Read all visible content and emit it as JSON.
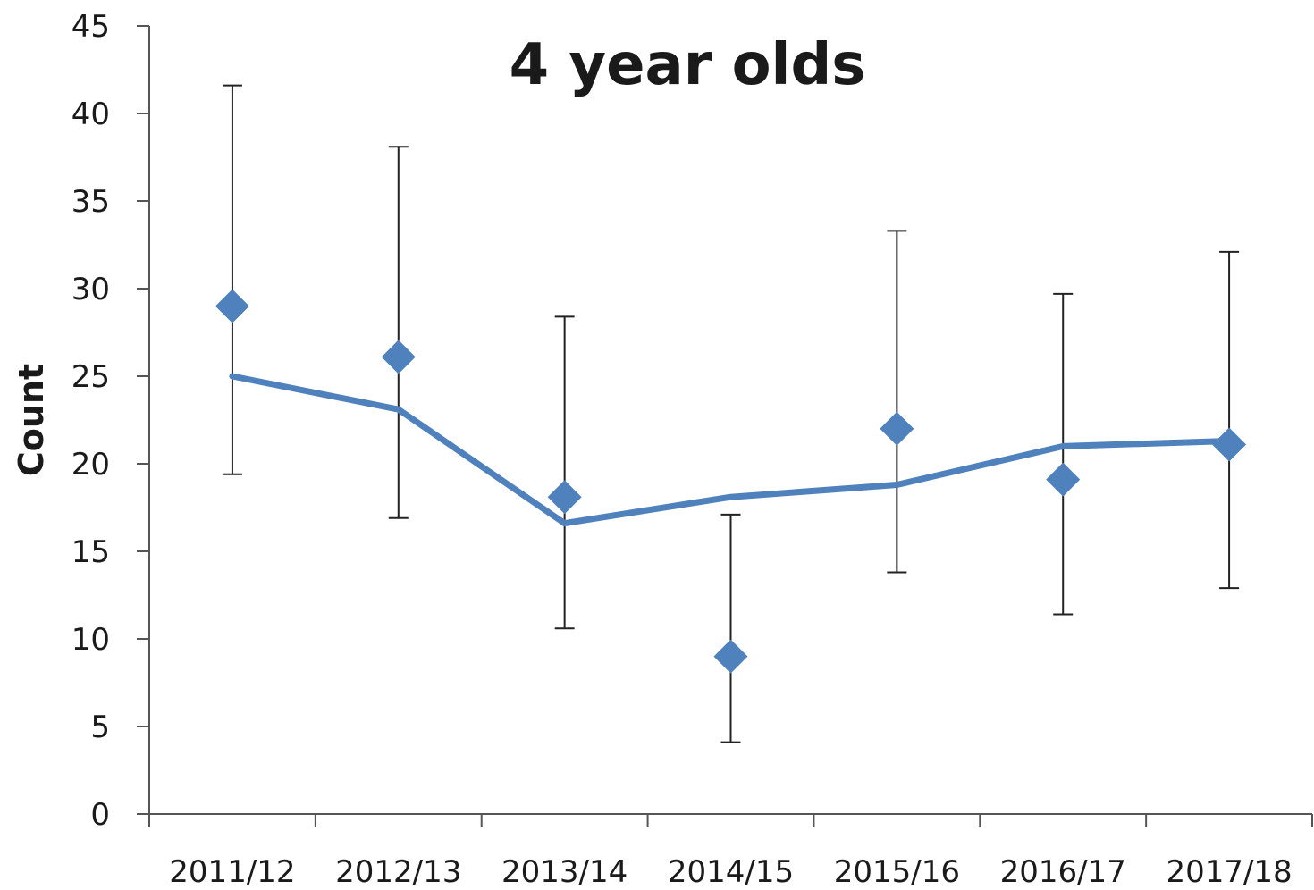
{
  "chart_data": {
    "type": "line",
    "title": "4 year olds",
    "xlabel": "",
    "ylabel": "Count",
    "ylim": [
      0,
      45
    ],
    "yticks": [
      0,
      5,
      10,
      15,
      20,
      25,
      30,
      35,
      40,
      45
    ],
    "categories": [
      "2011/12",
      "2012/13",
      "2013/14",
      "2014/15",
      "2015/16",
      "2016/17",
      "2017/18"
    ],
    "series": [
      {
        "type": "scatter",
        "marker": "diamond",
        "color": "#4f81bd",
        "values": [
          29,
          26.1,
          18.1,
          9,
          22,
          19.1,
          21.1
        ],
        "error_low": [
          19.4,
          16.9,
          10.6,
          4.1,
          13.8,
          11.4,
          12.9
        ],
        "error_high": [
          41.6,
          38.1,
          28.4,
          17.1,
          33.3,
          29.7,
          32.1
        ]
      },
      {
        "type": "line",
        "color": "#4f81bd",
        "values": [
          25,
          23.1,
          16.6,
          18.1,
          18.8,
          21,
          21.3
        ]
      }
    ],
    "grid": false,
    "legend": "none"
  }
}
